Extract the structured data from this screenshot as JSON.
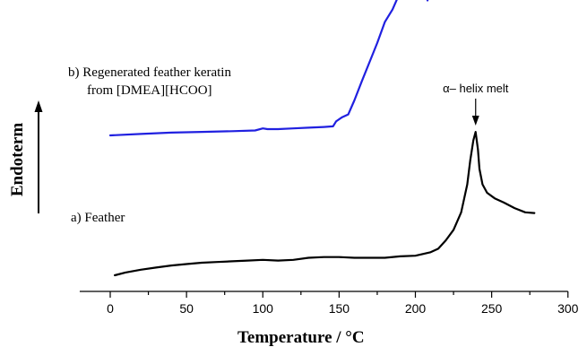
{
  "chart_data": {
    "type": "line",
    "xlabel": "Temperature / °C",
    "ylabel": "Endoterm",
    "xlim": [
      -20,
      300
    ],
    "xticks": [
      0,
      50,
      100,
      150,
      200,
      250,
      300
    ],
    "grid": false,
    "legend": "none",
    "y_units": "arbitrary (no y tick labels shown)",
    "series": [
      {
        "name": "a) Feather",
        "color": "#000000",
        "points": [
          [
            3,
            0.0
          ],
          [
            10,
            0.04
          ],
          [
            20,
            0.08
          ],
          [
            30,
            0.11
          ],
          [
            40,
            0.14
          ],
          [
            50,
            0.16
          ],
          [
            60,
            0.18
          ],
          [
            70,
            0.19
          ],
          [
            80,
            0.2
          ],
          [
            90,
            0.21
          ],
          [
            100,
            0.22
          ],
          [
            110,
            0.21
          ],
          [
            120,
            0.22
          ],
          [
            130,
            0.25
          ],
          [
            140,
            0.26
          ],
          [
            150,
            0.26
          ],
          [
            160,
            0.25
          ],
          [
            170,
            0.25
          ],
          [
            180,
            0.25
          ],
          [
            190,
            0.27
          ],
          [
            200,
            0.28
          ],
          [
            210,
            0.33
          ],
          [
            215,
            0.38
          ],
          [
            220,
            0.5
          ],
          [
            225,
            0.65
          ],
          [
            230,
            0.9
          ],
          [
            234,
            1.3
          ],
          [
            236,
            1.65
          ],
          [
            238,
            1.93
          ],
          [
            239.5,
            2.05
          ],
          [
            241,
            1.8
          ],
          [
            242,
            1.52
          ],
          [
            244,
            1.3
          ],
          [
            247,
            1.18
          ],
          [
            252,
            1.1
          ],
          [
            258,
            1.04
          ],
          [
            265,
            0.96
          ],
          [
            272,
            0.9
          ],
          [
            278,
            0.89
          ]
        ]
      },
      {
        "name": "b) Regenerated feather keratin from [DMEA][HCOO]",
        "color": "#2020e0",
        "points": [
          [
            0,
            2.0
          ],
          [
            20,
            2.02
          ],
          [
            40,
            2.04
          ],
          [
            60,
            2.05
          ],
          [
            80,
            2.06
          ],
          [
            95,
            2.07
          ],
          [
            100,
            2.1
          ],
          [
            103,
            2.09
          ],
          [
            110,
            2.09
          ],
          [
            120,
            2.1
          ],
          [
            130,
            2.11
          ],
          [
            140,
            2.12
          ],
          [
            146,
            2.13
          ],
          [
            148,
            2.2
          ],
          [
            152,
            2.26
          ],
          [
            156,
            2.3
          ],
          [
            160,
            2.5
          ],
          [
            165,
            2.78
          ],
          [
            170,
            3.05
          ],
          [
            175,
            3.32
          ],
          [
            180,
            3.62
          ],
          [
            185,
            3.8
          ],
          [
            190,
            4.05
          ],
          [
            193,
            4.2
          ],
          [
            196,
            4.32
          ],
          [
            198,
            4.3
          ],
          [
            200,
            4.22
          ],
          [
            202,
            4.28
          ],
          [
            204,
            4.18
          ],
          [
            206,
            4.05
          ],
          [
            208,
            3.93
          ]
        ]
      }
    ],
    "annotations": [
      {
        "text": "α– helix melt",
        "x": 239.5
      }
    ]
  }
}
